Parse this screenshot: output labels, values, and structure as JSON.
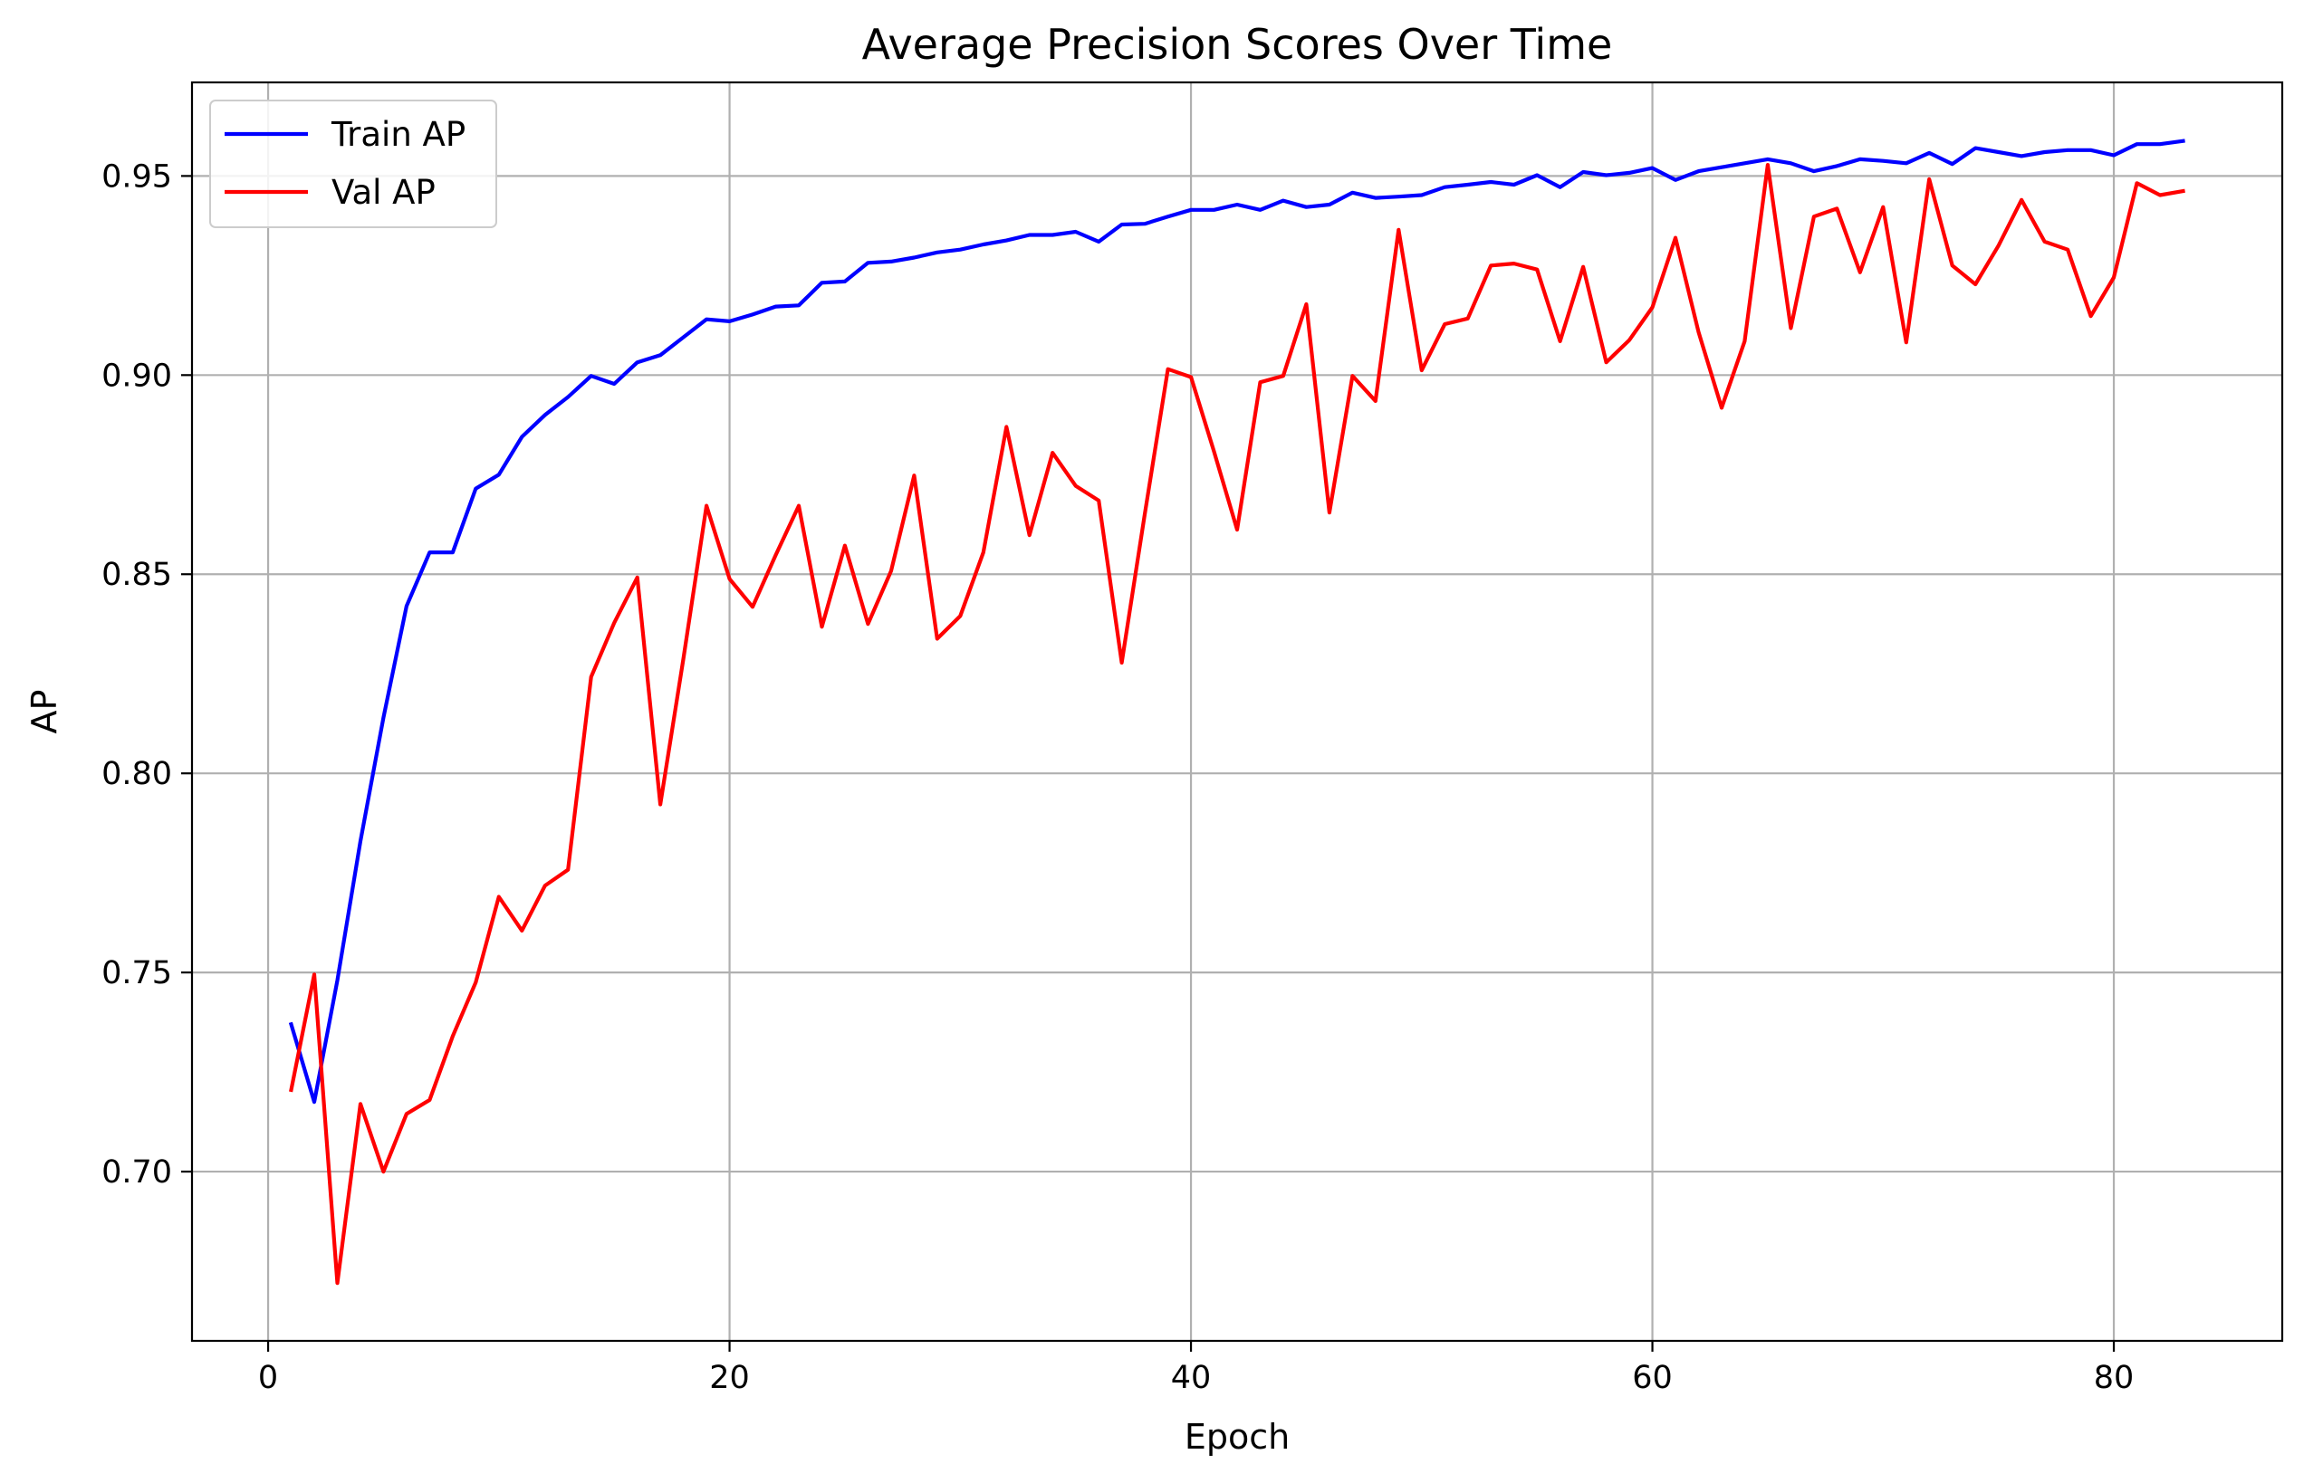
{
  "chart_data": {
    "type": "line",
    "title": "Average Precision Scores Over Time",
    "xlabel": "Epoch",
    "ylabel": "AP",
    "xlim": [
      -3.3,
      87.3
    ],
    "ylim": [
      0.6575,
      0.9735
    ],
    "xticks": [
      0,
      20,
      40,
      60,
      80
    ],
    "xtick_labels": [
      "0",
      "20",
      "40",
      "60",
      "80"
    ],
    "yticks": [
      0.7,
      0.75,
      0.8,
      0.85,
      0.9,
      0.95
    ],
    "ytick_labels": [
      "0.70",
      "0.75",
      "0.80",
      "0.85",
      "0.90",
      "0.95"
    ],
    "grid": true,
    "legend_position": "top-left",
    "x": [
      1,
      2,
      3,
      4,
      5,
      6,
      7,
      8,
      9,
      10,
      11,
      12,
      13,
      14,
      15,
      16,
      17,
      18,
      19,
      20,
      21,
      22,
      23,
      24,
      25,
      26,
      27,
      28,
      29,
      30,
      31,
      32,
      33,
      34,
      35,
      36,
      37,
      38,
      39,
      40,
      41,
      42,
      43,
      44,
      45,
      46,
      47,
      48,
      49,
      50,
      51,
      52,
      53,
      54,
      55,
      56,
      57,
      58,
      59,
      60,
      61,
      62,
      63,
      64,
      65,
      66,
      67,
      68,
      69,
      70,
      71,
      72,
      73,
      74,
      75,
      76,
      77,
      78,
      79,
      80,
      81,
      82,
      83
    ],
    "series": [
      {
        "name": "Train AP",
        "color": "#0000ff",
        "values": [
          0.737,
          0.7175,
          0.748,
          0.783,
          0.814,
          0.842,
          0.8555,
          0.8555,
          0.8715,
          0.875,
          0.8845,
          0.89,
          0.8945,
          0.8998,
          0.8978,
          0.9032,
          0.905,
          0.9095,
          0.914,
          0.9135,
          0.9152,
          0.9172,
          0.9175,
          0.9232,
          0.9235,
          0.9282,
          0.9285,
          0.9295,
          0.9308,
          0.9315,
          0.9328,
          0.9338,
          0.9352,
          0.9352,
          0.936,
          0.9335,
          0.9378,
          0.938,
          0.9398,
          0.9415,
          0.9415,
          0.9428,
          0.9415,
          0.9438,
          0.9422,
          0.9428,
          0.9458,
          0.9445,
          0.9448,
          0.9452,
          0.9472,
          0.9478,
          0.9485,
          0.9478,
          0.9502,
          0.9472,
          0.951,
          0.9502,
          0.9508,
          0.952,
          0.949,
          0.9512,
          0.9522,
          0.9532,
          0.9542,
          0.9532,
          0.9512,
          0.9525,
          0.9542,
          0.9538,
          0.9532,
          0.9558,
          0.953,
          0.957,
          0.956,
          0.955,
          0.956,
          0.9565,
          0.9565,
          0.9552,
          0.958,
          0.958,
          0.9588
        ]
      },
      {
        "name": "Val AP",
        "color": "#ff0000",
        "values": [
          0.7205,
          0.7495,
          0.672,
          0.717,
          0.7,
          0.7145,
          0.718,
          0.734,
          0.7475,
          0.769,
          0.7605,
          0.7718,
          0.7758,
          0.8242,
          0.8378,
          0.8492,
          0.7922,
          0.8288,
          0.8672,
          0.8488,
          0.8418,
          0.8548,
          0.8672,
          0.8368,
          0.8572,
          0.8375,
          0.8508,
          0.8748,
          0.8338,
          0.8395,
          0.8555,
          0.887,
          0.8598,
          0.8805,
          0.8722,
          0.8685,
          0.8278,
          0.8652,
          0.9015,
          0.8995,
          0.8808,
          0.8612,
          0.8982,
          0.8998,
          0.9178,
          0.8655,
          0.8998,
          0.8935,
          0.9365,
          0.9012,
          0.9128,
          0.9142,
          0.9275,
          0.928,
          0.9265,
          0.9085,
          0.9272,
          0.9032,
          0.9088,
          0.917,
          0.9345,
          0.9108,
          0.8918,
          0.9085,
          0.9528,
          0.9118,
          0.9398,
          0.9418,
          0.9258,
          0.9422,
          0.9082,
          0.9492,
          0.9275,
          0.9228,
          0.9325,
          0.944,
          0.9335,
          0.9315,
          0.9148,
          0.9245,
          0.9482,
          0.9452,
          0.9462
        ]
      }
    ]
  }
}
